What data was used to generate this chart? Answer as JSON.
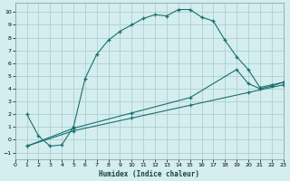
{
  "xlabel": "Humidex (Indice chaleur)",
  "bg_color": "#d4edee",
  "grid_color": "#aed0d0",
  "line_color": "#1a7070",
  "xlim": [
    0,
    23
  ],
  "ylim": [
    -1.5,
    10.7
  ],
  "xticks": [
    0,
    1,
    2,
    3,
    4,
    5,
    6,
    7,
    8,
    9,
    10,
    11,
    12,
    13,
    14,
    15,
    16,
    17,
    18,
    19,
    20,
    21,
    22,
    23
  ],
  "yticks": [
    -1,
    0,
    1,
    2,
    3,
    4,
    5,
    6,
    7,
    8,
    9,
    10
  ],
  "curve1_x": [
    1,
    2,
    3,
    4,
    5,
    6,
    7,
    8,
    9,
    10,
    11,
    12,
    13,
    14,
    15,
    16,
    17,
    18,
    19,
    20,
    21,
    22,
    23
  ],
  "curve1_y": [
    2.0,
    0.3,
    -0.5,
    -0.4,
    1.0,
    4.8,
    6.7,
    7.8,
    8.5,
    9.0,
    9.5,
    9.8,
    9.7,
    10.2,
    10.2,
    9.6,
    9.3,
    7.8,
    6.5,
    5.5,
    4.1,
    4.3,
    4.5
  ],
  "curve2_x": [
    1,
    5,
    10,
    15,
    19,
    20,
    21,
    22,
    23
  ],
  "curve2_y": [
    -0.5,
    0.9,
    2.1,
    3.3,
    5.5,
    4.4,
    4.0,
    4.2,
    4.5
  ],
  "curve3_x": [
    1,
    5,
    10,
    15,
    20,
    23
  ],
  "curve3_y": [
    -0.5,
    0.7,
    1.7,
    2.7,
    3.7,
    4.3
  ]
}
